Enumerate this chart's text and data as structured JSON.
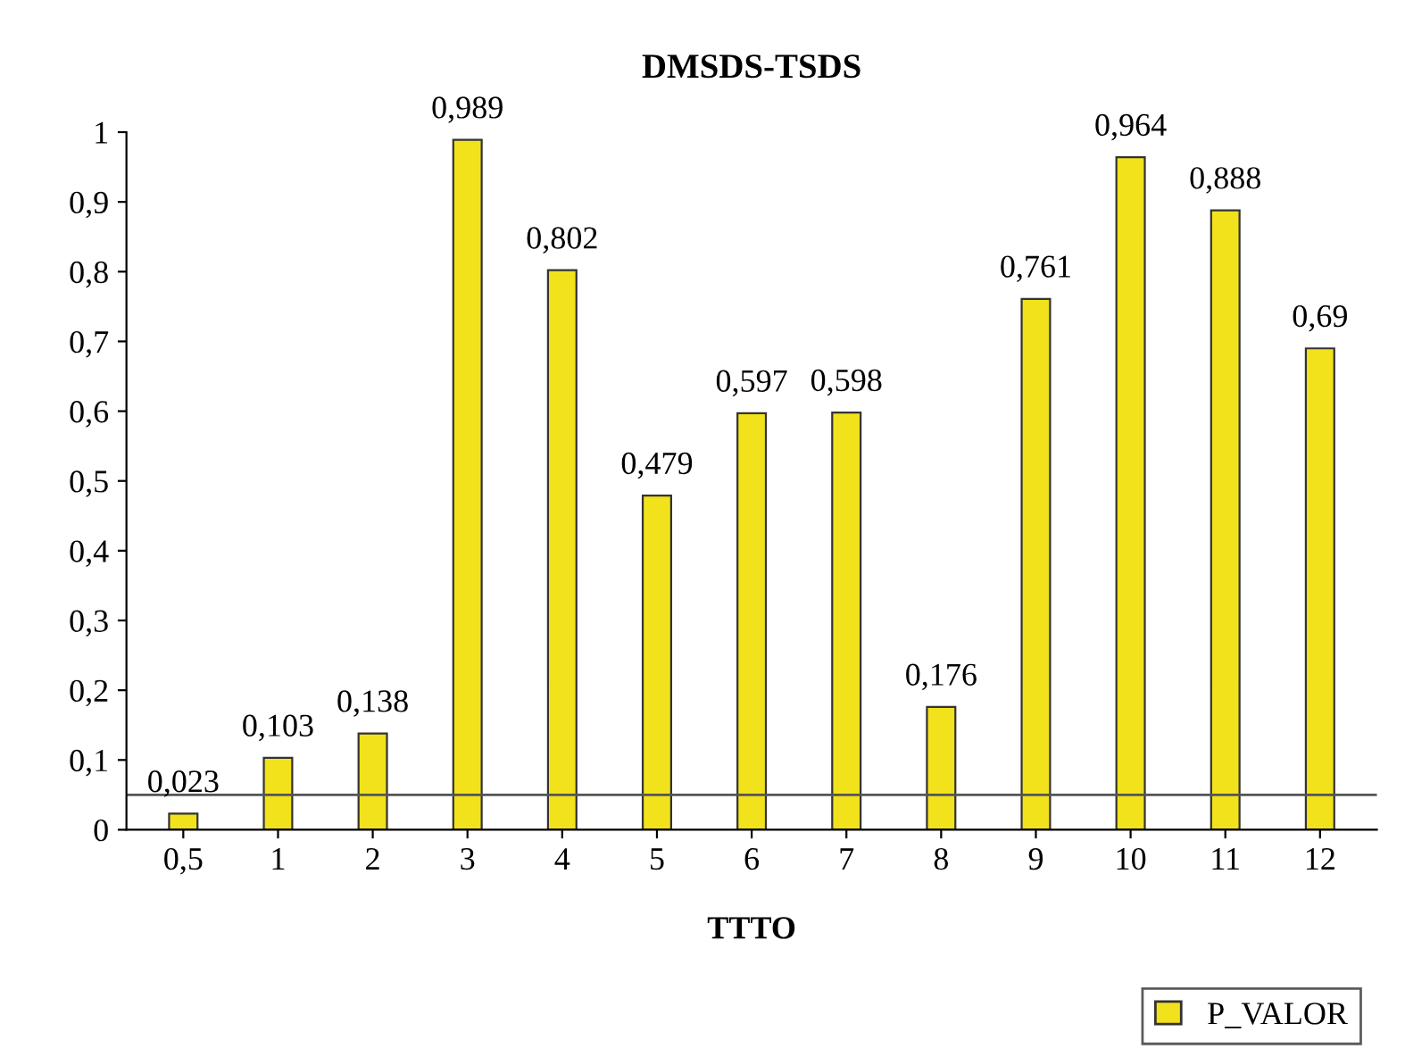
{
  "chart_data": {
    "type": "bar",
    "title": "DMSDS-TSDS",
    "xlabel": "TTTO",
    "categories": [
      "0,5",
      "1",
      "2",
      "3",
      "4",
      "5",
      "6",
      "7",
      "8",
      "9",
      "10",
      "11",
      "12"
    ],
    "series": [
      {
        "name": "P_VALOR",
        "color": "#f2e21c",
        "values": [
          0.023,
          0.103,
          0.138,
          0.989,
          0.802,
          0.479,
          0.597,
          0.598,
          0.176,
          0.761,
          0.964,
          0.888,
          0.69
        ],
        "value_labels": [
          "0,023",
          "0,103",
          "0,138",
          "0,989",
          "0,802",
          "0,479",
          "0,597",
          "0,598",
          "0,176",
          "0,761",
          "0,964",
          "0,888",
          "0,69"
        ]
      }
    ],
    "ylim": [
      0,
      1
    ],
    "yticks": [
      0,
      {
        "value": 0.1,
        "label": "0,1"
      },
      {
        "value": 0.2,
        "label": "0,2"
      },
      {
        "value": 0.3,
        "label": "0,3"
      },
      {
        "value": 0.4,
        "label": "0,4"
      },
      {
        "value": 0.5,
        "label": "0,5"
      },
      {
        "value": 0.6,
        "label": "0,6"
      },
      {
        "value": 0.7,
        "label": "0,7"
      },
      {
        "value": 0.8,
        "label": "0,8"
      },
      {
        "value": 0.9,
        "label": "0,9"
      },
      1
    ],
    "ref_lines": [
      {
        "axis": "y",
        "value": 0.05,
        "color": "#555555"
      }
    ],
    "grid": false,
    "legend": "bottom right"
  }
}
